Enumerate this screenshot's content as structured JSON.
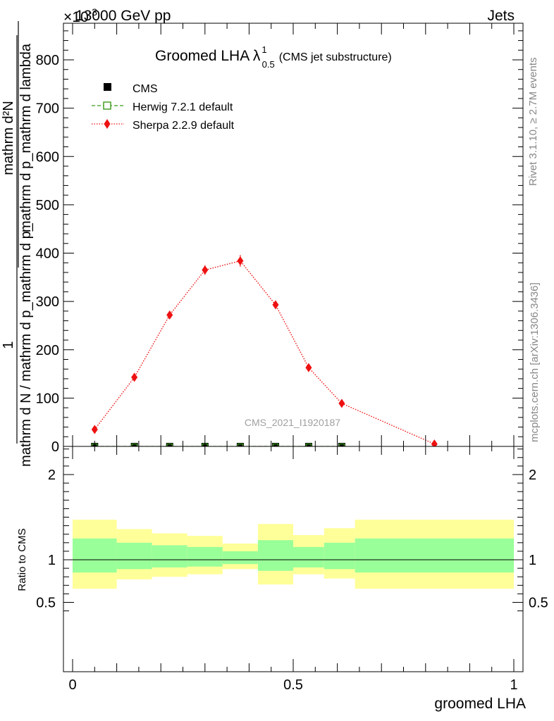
{
  "header": {
    "beam": "13000 GeV pp",
    "exponent": "×10",
    "exponent_power": "-3",
    "process": "Jets"
  },
  "side_labels": {
    "rivet": "Rivet 3.1.10, ≥ 2.7M events",
    "mcplots": "mcplots.cern.ch [arXiv:1306.3436]"
  },
  "watermark": "CMS_2021_I1920187",
  "title": {
    "main": "Groomed LHA λ",
    "sup": "1",
    "sub": "0.5",
    "suffix": "(CMS jet substructure)"
  },
  "ylabel_main": {
    "numerator_1": "1",
    "denominator_1": "mathrm d N / mathrm d p_mathrm d p_",
    "numerator_2": "mathrm d²N",
    "denominator_2": "mathrm d p_mathrm d lambda"
  },
  "colors": {
    "cms": "#000000",
    "herwig": "#3a9a1a",
    "sherpa": "#ee1111",
    "band_inner": "#99ff99",
    "band_outer": "#ffff99"
  },
  "chart_data": [
    {
      "type": "line",
      "panel": "main",
      "xlim": [
        0,
        1
      ],
      "ylim": [
        0,
        880
      ],
      "y_ticks": [
        0,
        100,
        200,
        300,
        400,
        500,
        600,
        700,
        800
      ],
      "y_tick_labels": [
        "0",
        "100",
        "200",
        "300",
        "400",
        "500",
        "600",
        "700",
        "800"
      ],
      "legend": [
        "CMS",
        "Herwig 7.2.1 default",
        "Sherpa 2.2.9 default"
      ],
      "legend_position": "top-left",
      "series": [
        {
          "name": "CMS",
          "marker": "filled-square",
          "x": [
            0.05,
            0.14,
            0.22,
            0.3,
            0.38,
            0.46,
            0.535,
            0.61
          ],
          "y": [
            0,
            0,
            0,
            0,
            0,
            0,
            0,
            0
          ]
        },
        {
          "name": "Herwig 7.2.1 default",
          "marker": "open-square",
          "line": "dashed",
          "x": [
            0.05,
            0.14,
            0.22,
            0.3,
            0.38,
            0.46,
            0.535,
            0.61
          ],
          "y": [
            0,
            0,
            0,
            0,
            0,
            0,
            0,
            0
          ]
        },
        {
          "name": "Sherpa 2.2.9 default",
          "marker": "diamond",
          "line": "dotted",
          "x": [
            0.05,
            0.14,
            0.22,
            0.3,
            0.38,
            0.46,
            0.535,
            0.61,
            0.82
          ],
          "y": [
            35,
            143,
            272,
            365,
            384,
            293,
            163,
            89,
            5
          ],
          "err": [
            4,
            6,
            8,
            10,
            12,
            8,
            6,
            4,
            3
          ]
        }
      ]
    },
    {
      "type": "area",
      "panel": "ratio",
      "xlabel": "groomed LHA",
      "ylabel": "Ratio to CMS",
      "xlim": [
        -0.04,
        1.04
      ],
      "ylim": [
        0.34,
        2.34
      ],
      "x_ticks": [
        0,
        0.5,
        1
      ],
      "x_tick_labels": [
        "0",
        "0.5",
        "1"
      ],
      "y_ticks": [
        0.5,
        1,
        2
      ],
      "y_tick_labels": [
        "0.5",
        "1",
        "2"
      ],
      "reference_line": 1,
      "bins": [
        {
          "lo": 0.0,
          "hi": 0.1,
          "outer": [
            0.66,
            1.47
          ],
          "inner": [
            0.85,
            1.25
          ]
        },
        {
          "lo": 0.1,
          "hi": 0.18,
          "outer": [
            0.77,
            1.36
          ],
          "inner": [
            0.89,
            1.2
          ]
        },
        {
          "lo": 0.18,
          "hi": 0.26,
          "outer": [
            0.8,
            1.31
          ],
          "inner": [
            0.91,
            1.17
          ]
        },
        {
          "lo": 0.26,
          "hi": 0.34,
          "outer": [
            0.83,
            1.28
          ],
          "inner": [
            0.92,
            1.15
          ]
        },
        {
          "lo": 0.34,
          "hi": 0.42,
          "outer": [
            0.89,
            1.19
          ],
          "inner": [
            0.95,
            1.1
          ]
        },
        {
          "lo": 0.42,
          "hi": 0.5,
          "outer": [
            0.71,
            1.42
          ],
          "inner": [
            0.87,
            1.23
          ]
        },
        {
          "lo": 0.5,
          "hi": 0.57,
          "outer": [
            0.83,
            1.29
          ],
          "inner": [
            0.91,
            1.15
          ]
        },
        {
          "lo": 0.57,
          "hi": 0.64,
          "outer": [
            0.78,
            1.37
          ],
          "inner": [
            0.89,
            1.2
          ]
        },
        {
          "lo": 0.64,
          "hi": 1.0,
          "outer": [
            0.66,
            1.47
          ],
          "inner": [
            0.85,
            1.25
          ]
        }
      ]
    }
  ]
}
